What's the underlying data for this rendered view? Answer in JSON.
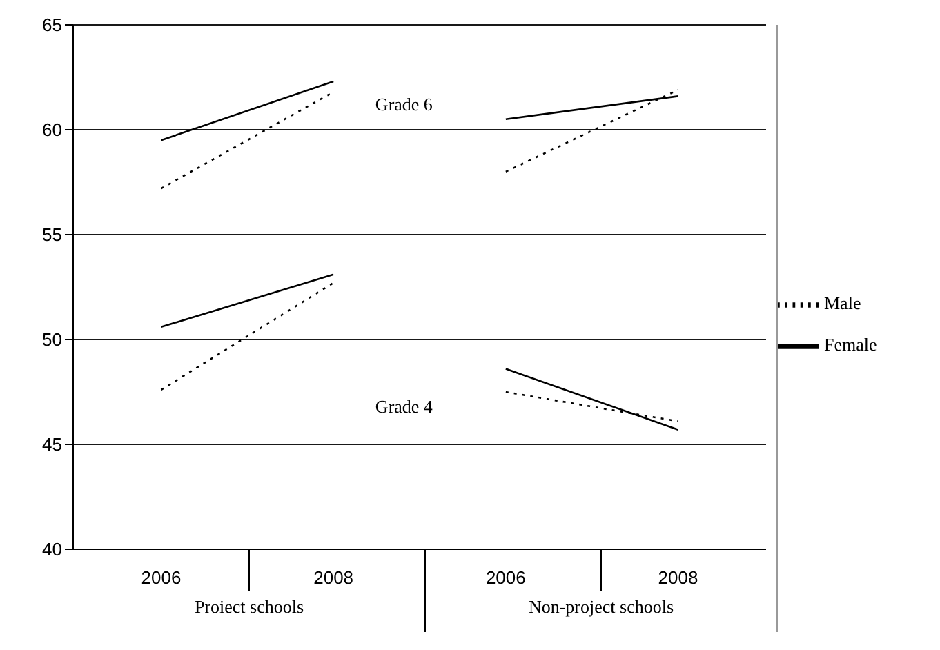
{
  "chart_data": {
    "type": "line",
    "categories": [
      "2006",
      "2008",
      "2006",
      "2008"
    ],
    "ylim": [
      40,
      65
    ],
    "yticks": [
      40,
      45,
      50,
      55,
      60,
      65
    ],
    "grid": "y",
    "legend": "right",
    "marker": "none",
    "annotations": [
      "Grade 6",
      "Grade 4",
      "Proiect schools",
      "Non-project schools"
    ],
    "series": [
      {
        "name": "Male",
        "color": "#000000",
        "line_style": "dotted",
        "values": [
          57.2,
          61.8,
          null,
          null
        ]
      },
      {
        "name": "Female",
        "color": "#000000",
        "line_style": "solid",
        "values": [
          59.5,
          62.3,
          null,
          null
        ]
      },
      {
        "color": "#000000",
        "line_style": "dotted",
        "values": [
          null,
          null,
          58.0,
          61.9
        ]
      },
      {
        "color": "#000000",
        "line_style": "solid",
        "values": [
          null,
          null,
          60.5,
          61.6
        ]
      },
      {
        "color": "#000000",
        "line_style": "dotted",
        "values": [
          47.6,
          52.7,
          null,
          null
        ]
      },
      {
        "color": "#000000",
        "line_style": "solid",
        "values": [
          50.6,
          53.1,
          null,
          null
        ]
      },
      {
        "color": "#000000",
        "line_style": "dotted",
        "values": [
          null,
          null,
          47.5,
          46.1
        ]
      },
      {
        "color": "#000000",
        "line_style": "solid",
        "values": [
          null,
          null,
          48.6,
          45.7
        ]
      }
    ]
  }
}
